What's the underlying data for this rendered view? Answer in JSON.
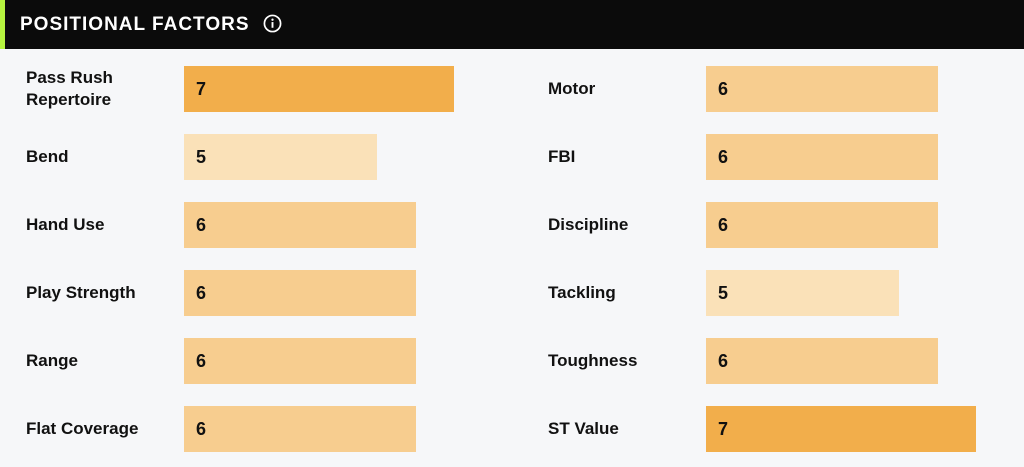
{
  "header": {
    "title": "POSITIONAL FACTORS",
    "info_icon": "info-icon"
  },
  "scale_max": 7,
  "colors": {
    "grade_7": "#f2ae4b",
    "grade_6": "#f7cd8f",
    "grade_5": "#fae1b8",
    "accent": "#b6f43f",
    "header_bg": "#0b0b0b"
  },
  "factors": {
    "left": [
      {
        "label": "Pass Rush\nRepertoire",
        "value": 7
      },
      {
        "label": "Bend",
        "value": 5
      },
      {
        "label": "Hand Use",
        "value": 6
      },
      {
        "label": "Play Strength",
        "value": 6
      },
      {
        "label": "Range",
        "value": 6
      },
      {
        "label": "Flat Coverage",
        "value": 6
      }
    ],
    "right": [
      {
        "label": "Motor",
        "value": 6
      },
      {
        "label": "FBI",
        "value": 6
      },
      {
        "label": "Discipline",
        "value": 6
      },
      {
        "label": "Tackling",
        "value": 5
      },
      {
        "label": "Toughness",
        "value": 6
      },
      {
        "label": "ST Value",
        "value": 7
      }
    ]
  }
}
